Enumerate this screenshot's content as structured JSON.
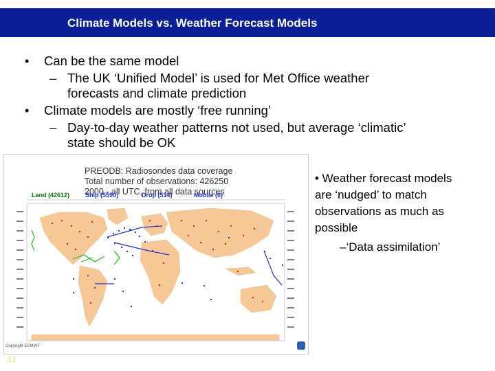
{
  "title": "Climate Models vs. Weather Forecast Models",
  "bullets": {
    "b1": "Can be the same model",
    "b1_sub_l1": "The UK ‘Unified Model’ is used for Met Office weather",
    "b1_sub_l2": "forecasts and climate prediction",
    "b2": "Climate models are mostly ‘free running’",
    "b2_sub_l1": "Day-to-day weather patterns not used, but average ‘climatic’",
    "b2_sub_l2": "state should be OK",
    "bullet_char": "•",
    "dash_char": "–"
  },
  "figure": {
    "line1": "PREODB: Radiosondes data coverage",
    "line2": "Total number of observations:  426250",
    "line3": "2000 - all UTC, from all data sources",
    "legend": {
      "land": "Land (42612)",
      "ship": "Ship (5590)",
      "drop": "Drop (514)",
      "mobile": "Mobile (0)"
    },
    "copyright": "Copyright ECMWF",
    "colors": {
      "land_mass": "#f6c896",
      "ocean": "#ffffff",
      "land_obs": "#cc2222",
      "ship_obs": "#1e2fd6",
      "drop_obs": "#22bb22"
    }
  },
  "right": {
    "l1": "• Weather forecast models",
    "l2": "are ‘nudged’ to match",
    "l3": "observations as much as",
    "l4": "possible",
    "l5": "–‘Data assimilation’"
  },
  "slide_number": "12"
}
